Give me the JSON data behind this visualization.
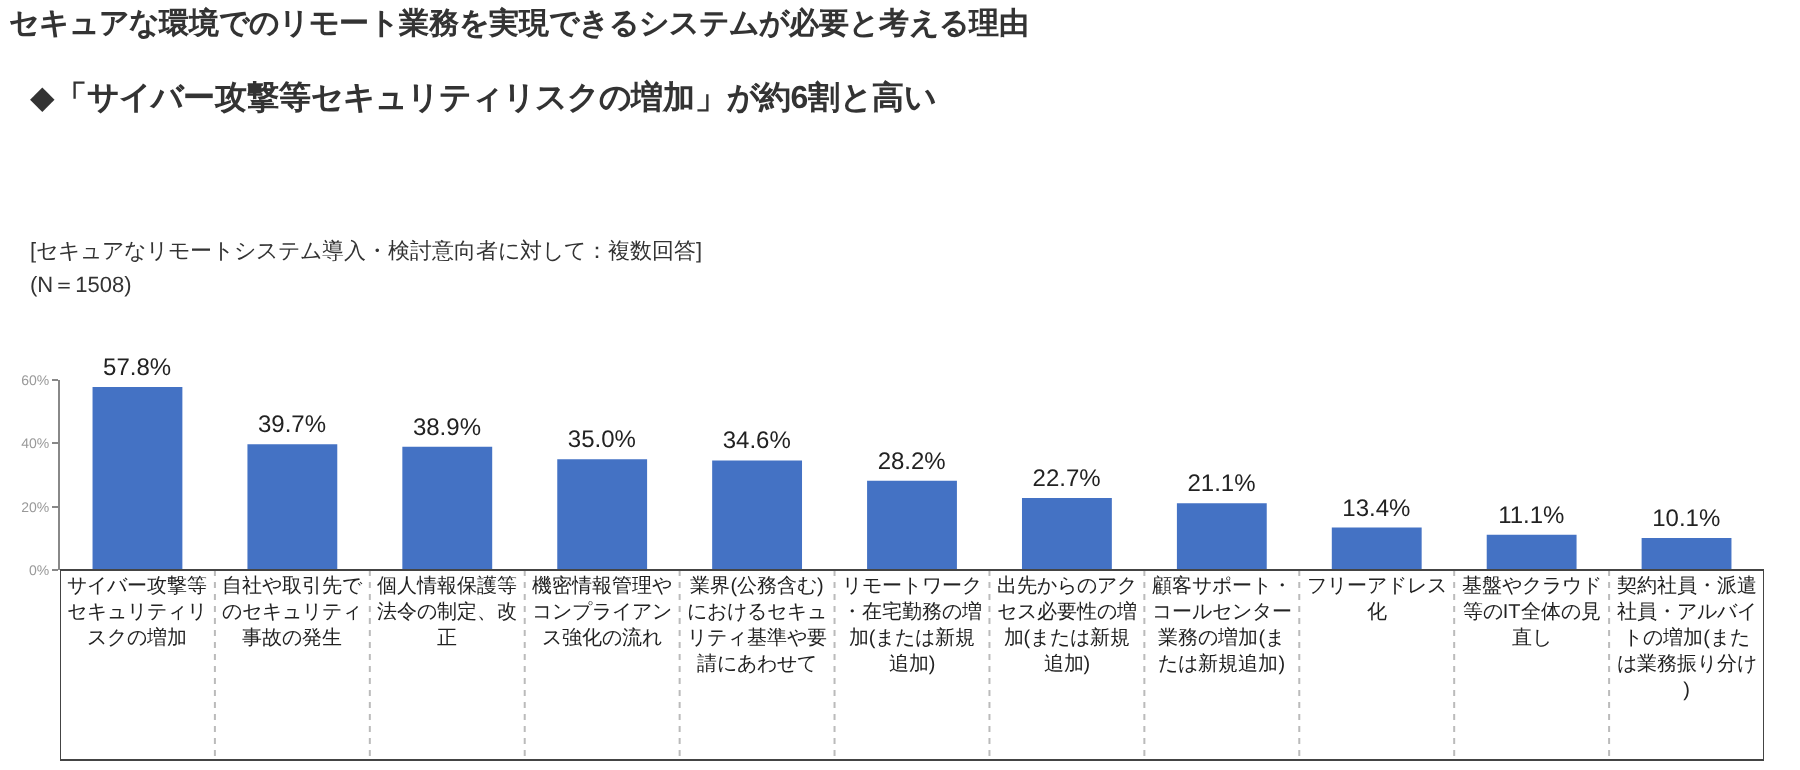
{
  "chart_data": {
    "type": "bar",
    "title": "セキュアな環境でのリモート業務を実現できるシステムが必要と考える理由",
    "subtitle": "◆「サイバー攻撃等セキュリティリスクの増加」が約6割と高い",
    "annotations": [
      "[セキュアなリモートシステム導入・検討意向者に対して：複数回答]",
      "(N＝1508)"
    ],
    "categories": [
      "サイバー攻撃等セキュリティリスクの増加",
      "自社や取引先でのセキュリティ事故の発生",
      "個人情報保護等法令の制定、改正",
      "機密情報管理やコンプライアンス強化の流れ",
      "業界(公務含む)におけるセキュリティ基準や要請にあわせて",
      "リモートワーク・在宅勤務の増加(または新規追加)",
      "出先からのアクセス必要性の増加(または新規追加)",
      "顧客サポート・コールセンター業務の増加(または新規追加)",
      "フリーアドレス化",
      "基盤やクラウド等のIT全体の見直し",
      "契約社員・派遣社員・アルバイトの増加(または業務振り分け)"
    ],
    "values": [
      57.8,
      39.7,
      38.9,
      35.0,
      34.6,
      28.2,
      22.7,
      21.1,
      13.4,
      11.1,
      10.1
    ],
    "value_labels": [
      "57.8%",
      "39.7%",
      "38.9%",
      "35.0%",
      "34.6%",
      "28.2%",
      "22.7%",
      "21.1%",
      "13.4%",
      "11.1%",
      "10.1%"
    ],
    "color": "#4472c4",
    "ylim": [
      0,
      60
    ],
    "yticks": [
      {
        "value": 0,
        "label": "0%"
      },
      {
        "value": 20,
        "label": "20%"
      },
      {
        "value": 40,
        "label": "40%"
      },
      {
        "value": 60,
        "label": "60%"
      }
    ],
    "grid": false,
    "legend": false
  }
}
